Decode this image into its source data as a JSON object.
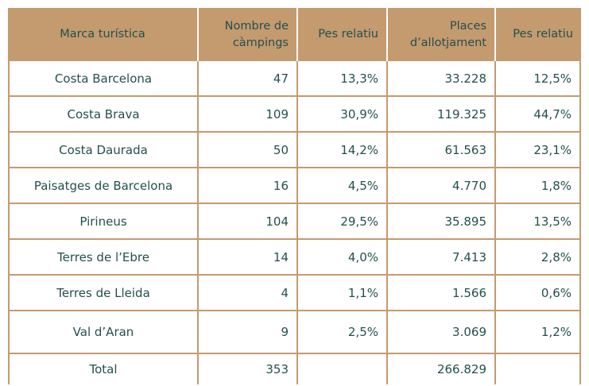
{
  "table": {
    "headers": [
      "Marca turística",
      "Nombre de\ncàmpings",
      "Pes relatiu",
      "Places\nd’allotjament",
      "Pes relatiu"
    ],
    "rows": [
      {
        "brand": "Costa Barcelona",
        "campings": "47",
        "campings_pct": "13,3%",
        "places": "33.228",
        "places_pct": "12,5%"
      },
      {
        "brand": "Costa Brava",
        "campings": "109",
        "campings_pct": "30,9%",
        "places": "119.325",
        "places_pct": "44,7%"
      },
      {
        "brand": "Costa Daurada",
        "campings": "50",
        "campings_pct": "14,2%",
        "places": "61.563",
        "places_pct": "23,1%"
      },
      {
        "brand": "Paisatges de Barcelona",
        "campings": "16",
        "campings_pct": "4,5%",
        "places": "4.770",
        "places_pct": "1,8%"
      },
      {
        "brand": "Pirineus",
        "campings": "104",
        "campings_pct": "29,5%",
        "places": "35.895",
        "places_pct": "13,5%"
      },
      {
        "brand": "Terres de l’Ebre",
        "campings": "14",
        "campings_pct": "4,0%",
        "places": "7.413",
        "places_pct": "2,8%"
      },
      {
        "brand": "Terres de Lleida",
        "campings": "4",
        "campings_pct": "1,1%",
        "places": "1.566",
        "places_pct": "0,6%"
      },
      {
        "brand": "Val d’Aran",
        "campings": "9",
        "campings_pct": "2,5%",
        "places": "3.069",
        "places_pct": "1,2%"
      }
    ],
    "total": {
      "label": "Total",
      "campings": "353",
      "campings_pct": "",
      "places": "266.829",
      "places_pct": ""
    }
  },
  "colors": {
    "header_bg": "#c49a6f",
    "text": "#23504d",
    "border": "#c49a6f"
  }
}
